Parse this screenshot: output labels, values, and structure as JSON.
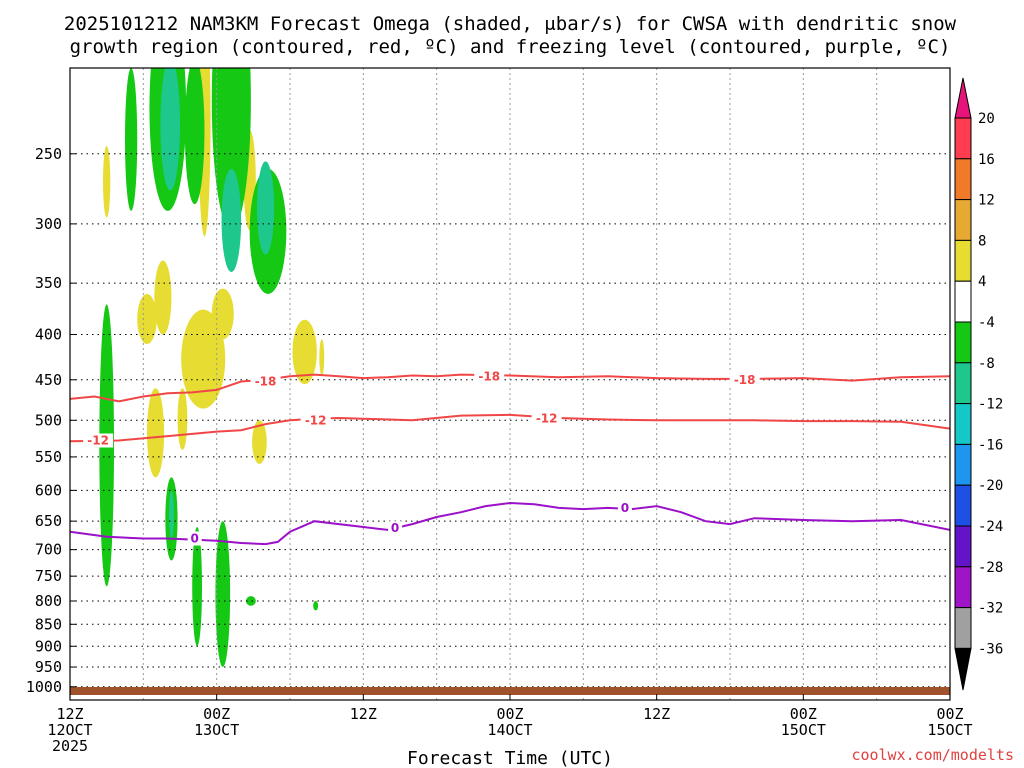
{
  "chart_data": {
    "type": "heatmap",
    "title_line1": "2025101212 NAM3KM Forecast Omega (shaded, μbar/s) for CWSA with dendritic snow",
    "title_line2": "growth region (contoured, red, ºC) and freezing level (contoured, purple, ºC)",
    "xlabel": "Forecast Time (UTC)",
    "credit": "coolwx.com/modelts",
    "y_scale": "log-pressure (reversed)",
    "ylim": [
      1035,
      200
    ],
    "y_ticks": [
      250,
      300,
      350,
      400,
      450,
      500,
      550,
      600,
      650,
      700,
      750,
      800,
      850,
      900,
      950,
      1000
    ],
    "xlim": [
      0,
      72
    ],
    "x_ticks": [
      {
        "hour": 0,
        "line1": "12Z",
        "line2": "12OCT",
        "line3": "2025"
      },
      {
        "hour": 12,
        "line1": "00Z",
        "line2": "13OCT",
        "line3": ""
      },
      {
        "hour": 24,
        "line1": "12Z",
        "line2": "",
        "line3": ""
      },
      {
        "hour": 36,
        "line1": "00Z",
        "line2": "14OCT",
        "line3": ""
      },
      {
        "hour": 48,
        "line1": "12Z",
        "line2": "",
        "line3": ""
      },
      {
        "hour": 60,
        "line1": "00Z",
        "line2": "15OCT",
        "line3": ""
      }
    ],
    "colorbar": {
      "labels": [
        "20",
        "16",
        "12",
        "8",
        "4",
        "-4",
        "-8",
        "-12",
        "-16",
        "-20",
        "-24",
        "-28",
        "-32",
        "-36"
      ],
      "colors": [
        "#ff3c50",
        "#f07a28",
        "#e6aa32",
        "#e6dc32",
        "#ffffff",
        "#14c814",
        "#1ec88c",
        "#14c8c8",
        "#1e96f0",
        "#1e50e6",
        "#6414c8",
        "#a014c8",
        "#a0a0a0"
      ],
      "top_arrow_color": "#e6147a",
      "bottom_arrow_color": "#000000"
    },
    "contours": [
      {
        "label": "-18",
        "color": "#f04646",
        "points": [
          [
            0,
            473
          ],
          [
            2,
            470
          ],
          [
            4,
            476
          ],
          [
            6,
            470
          ],
          [
            8,
            466
          ],
          [
            10,
            465
          ],
          [
            12,
            462
          ],
          [
            14,
            452
          ],
          [
            16,
            450
          ],
          [
            18,
            446
          ],
          [
            20,
            444
          ],
          [
            22,
            446
          ],
          [
            24,
            448
          ],
          [
            26,
            447
          ],
          [
            28,
            445
          ],
          [
            30,
            446
          ],
          [
            32,
            444
          ],
          [
            36,
            445
          ],
          [
            40,
            447
          ],
          [
            44,
            446
          ],
          [
            48,
            448
          ],
          [
            52,
            449
          ],
          [
            56,
            449
          ],
          [
            60,
            448
          ],
          [
            64,
            451
          ],
          [
            68,
            447
          ],
          [
            72,
            446
          ]
        ]
      },
      {
        "label": "-12",
        "color": "#f04646",
        "points": [
          [
            0,
            528
          ],
          [
            4,
            527
          ],
          [
            8,
            521
          ],
          [
            12,
            515
          ],
          [
            14,
            513
          ],
          [
            16,
            505
          ],
          [
            18,
            500
          ],
          [
            20,
            498
          ],
          [
            22,
            497
          ],
          [
            24,
            498
          ],
          [
            28,
            500
          ],
          [
            32,
            494
          ],
          [
            36,
            493
          ],
          [
            40,
            497
          ],
          [
            44,
            499
          ],
          [
            48,
            500
          ],
          [
            52,
            500
          ],
          [
            56,
            500
          ],
          [
            60,
            501
          ],
          [
            64,
            501
          ],
          [
            68,
            502
          ],
          [
            72,
            511
          ]
        ]
      },
      {
        "label": "0",
        "color": "#9b10c8",
        "points": [
          [
            0,
            668
          ],
          [
            3,
            677
          ],
          [
            6,
            680
          ],
          [
            8,
            680
          ],
          [
            10,
            682
          ],
          [
            12,
            684
          ],
          [
            14,
            688
          ],
          [
            16,
            690
          ],
          [
            17,
            686
          ],
          [
            18,
            668
          ],
          [
            20,
            650
          ],
          [
            22,
            655
          ],
          [
            24,
            660
          ],
          [
            26,
            665
          ],
          [
            28,
            655
          ],
          [
            30,
            643
          ],
          [
            32,
            635
          ],
          [
            34,
            625
          ],
          [
            36,
            620
          ],
          [
            38,
            622
          ],
          [
            40,
            628
          ],
          [
            42,
            630
          ],
          [
            44,
            628
          ],
          [
            46,
            630
          ],
          [
            48,
            625
          ],
          [
            50,
            635
          ],
          [
            52,
            650
          ],
          [
            54,
            655
          ],
          [
            56,
            645
          ],
          [
            60,
            648
          ],
          [
            64,
            650
          ],
          [
            68,
            648
          ],
          [
            72,
            665
          ]
        ]
      }
    ],
    "contour_labels": [
      {
        "text": "-18",
        "x": 16.0,
        "p": 452
      },
      {
        "text": "-18",
        "x": 34.3,
        "p": 446
      },
      {
        "text": "-18",
        "x": 55.2,
        "p": 450
      },
      {
        "text": "-12",
        "x": 2.3,
        "p": 527
      },
      {
        "text": "-12",
        "x": 20.1,
        "p": 500
      },
      {
        "text": "-12",
        "x": 39.0,
        "p": 498
      },
      {
        "text": "0",
        "x": 10.2,
        "p": 680
      },
      {
        "text": "0",
        "x": 26.6,
        "p": 662
      },
      {
        "text": "0",
        "x": 45.4,
        "p": 628
      }
    ],
    "omega_features": [
      {
        "v": 5,
        "x": 3.0,
        "p": 270,
        "rx": 0.3,
        "rp": 25
      },
      {
        "v": -6,
        "x": 5.0,
        "p": 245,
        "rx": 0.5,
        "rp": 45
      },
      {
        "v": -6,
        "x": 8.0,
        "p": 230,
        "rx": 1.5,
        "rp": 60
      },
      {
        "v": -10,
        "x": 8.2,
        "p": 235,
        "rx": 0.8,
        "rp": 40
      },
      {
        "v": 6,
        "x": 11.0,
        "p": 240,
        "rx": 0.5,
        "rp": 70
      },
      {
        "v": -6,
        "x": 10.2,
        "p": 240,
        "rx": 0.8,
        "rp": 45
      },
      {
        "v": -6,
        "x": 13.2,
        "p": 230,
        "rx": 1.6,
        "rp": 75
      },
      {
        "v": -10,
        "x": 13.2,
        "p": 300,
        "rx": 0.8,
        "rp": 40
      },
      {
        "v": -6,
        "x": 16.2,
        "p": 310,
        "rx": 1.5,
        "rp": 50
      },
      {
        "v": -10,
        "x": 16.0,
        "p": 290,
        "rx": 0.7,
        "rp": 35
      },
      {
        "v": 5,
        "x": 14.7,
        "p": 270,
        "rx": 0.5,
        "rp": 35
      },
      {
        "v": 5,
        "x": 6.3,
        "p": 385,
        "rx": 0.8,
        "rp": 25
      },
      {
        "v": 5,
        "x": 7.6,
        "p": 365,
        "rx": 0.7,
        "rp": 35
      },
      {
        "v": 5,
        "x": 12.5,
        "p": 380,
        "rx": 0.9,
        "rp": 25
      },
      {
        "v": 5,
        "x": 10.9,
        "p": 430,
        "rx": 1.8,
        "rp": 55
      },
      {
        "v": 5,
        "x": 7.0,
        "p": 520,
        "rx": 0.7,
        "rp": 60
      },
      {
        "v": 5,
        "x": 9.2,
        "p": 500,
        "rx": 0.4,
        "rp": 40
      },
      {
        "v": 5,
        "x": 15.5,
        "p": 530,
        "rx": 0.6,
        "rp": 30
      },
      {
        "v": 5,
        "x": 19.2,
        "p": 420,
        "rx": 1.0,
        "rp": 35
      },
      {
        "v": 5,
        "x": 20.6,
        "p": 425,
        "rx": 0.2,
        "rp": 20
      },
      {
        "v": -6,
        "x": 3.0,
        "p": 570,
        "rx": 0.6,
        "rp": 200
      },
      {
        "v": -6,
        "x": 8.3,
        "p": 650,
        "rx": 0.5,
        "rp": 70
      },
      {
        "v": -10,
        "x": 8.3,
        "p": 640,
        "rx": 0.2,
        "rp": 40
      },
      {
        "v": -6,
        "x": 10.4,
        "p": 780,
        "rx": 0.4,
        "rp": 120
      },
      {
        "v": -6,
        "x": 12.5,
        "p": 800,
        "rx": 0.6,
        "rp": 150
      },
      {
        "v": -6,
        "x": 14.8,
        "p": 800,
        "rx": 0.4,
        "rp": 10
      },
      {
        "v": -6,
        "x": 20.1,
        "p": 810,
        "rx": 0.2,
        "rp": 10
      }
    ]
  }
}
